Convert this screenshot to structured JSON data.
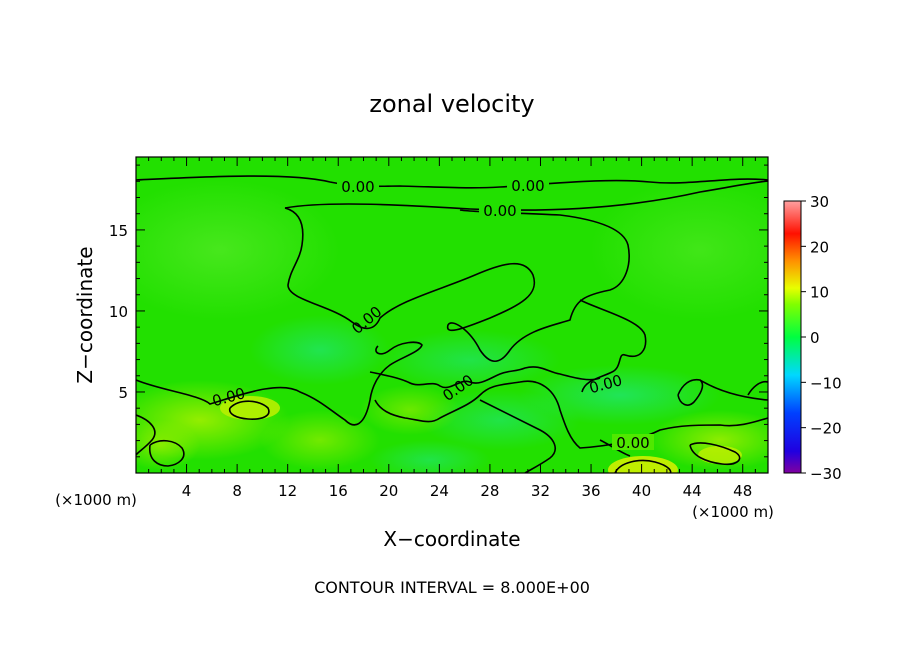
{
  "chart_data": {
    "type": "heatmap",
    "title": "zonal velocity",
    "xlabel": "X−coordinate",
    "ylabel": "Z−coordinate",
    "x_unit_left": "(×1000 m)",
    "x_unit_right": "(×1000 m)",
    "xlim": [
      0,
      50
    ],
    "ylim": [
      0,
      19.5
    ],
    "x_ticks": [
      4,
      8,
      12,
      16,
      20,
      24,
      28,
      32,
      36,
      40,
      44,
      48
    ],
    "y_ticks": [
      5,
      10,
      15
    ],
    "colorbar": {
      "ticks": [
        30,
        20,
        10,
        0,
        -10,
        -20,
        -30
      ],
      "tick_labels": [
        "30",
        "20",
        "10",
        "0",
        "−10",
        "−20",
        "−30"
      ],
      "range": [
        -30,
        30
      ]
    },
    "contour_interval_label": "CONTOUR INTERVAL = 8.000E+00",
    "contour_labels": [
      "0.00",
      "0.00",
      "0.00",
      "0.00",
      "0.00",
      "0.00",
      "0.00",
      "0.00"
    ],
    "colors": {
      "background_field": "#22e000",
      "colormap": [
        "#8000a0",
        "#0000ff",
        "#00e0e0",
        "#00ff00",
        "#e0ff00",
        "#ff8000",
        "#ff0000",
        "#ff9090"
      ]
    }
  }
}
